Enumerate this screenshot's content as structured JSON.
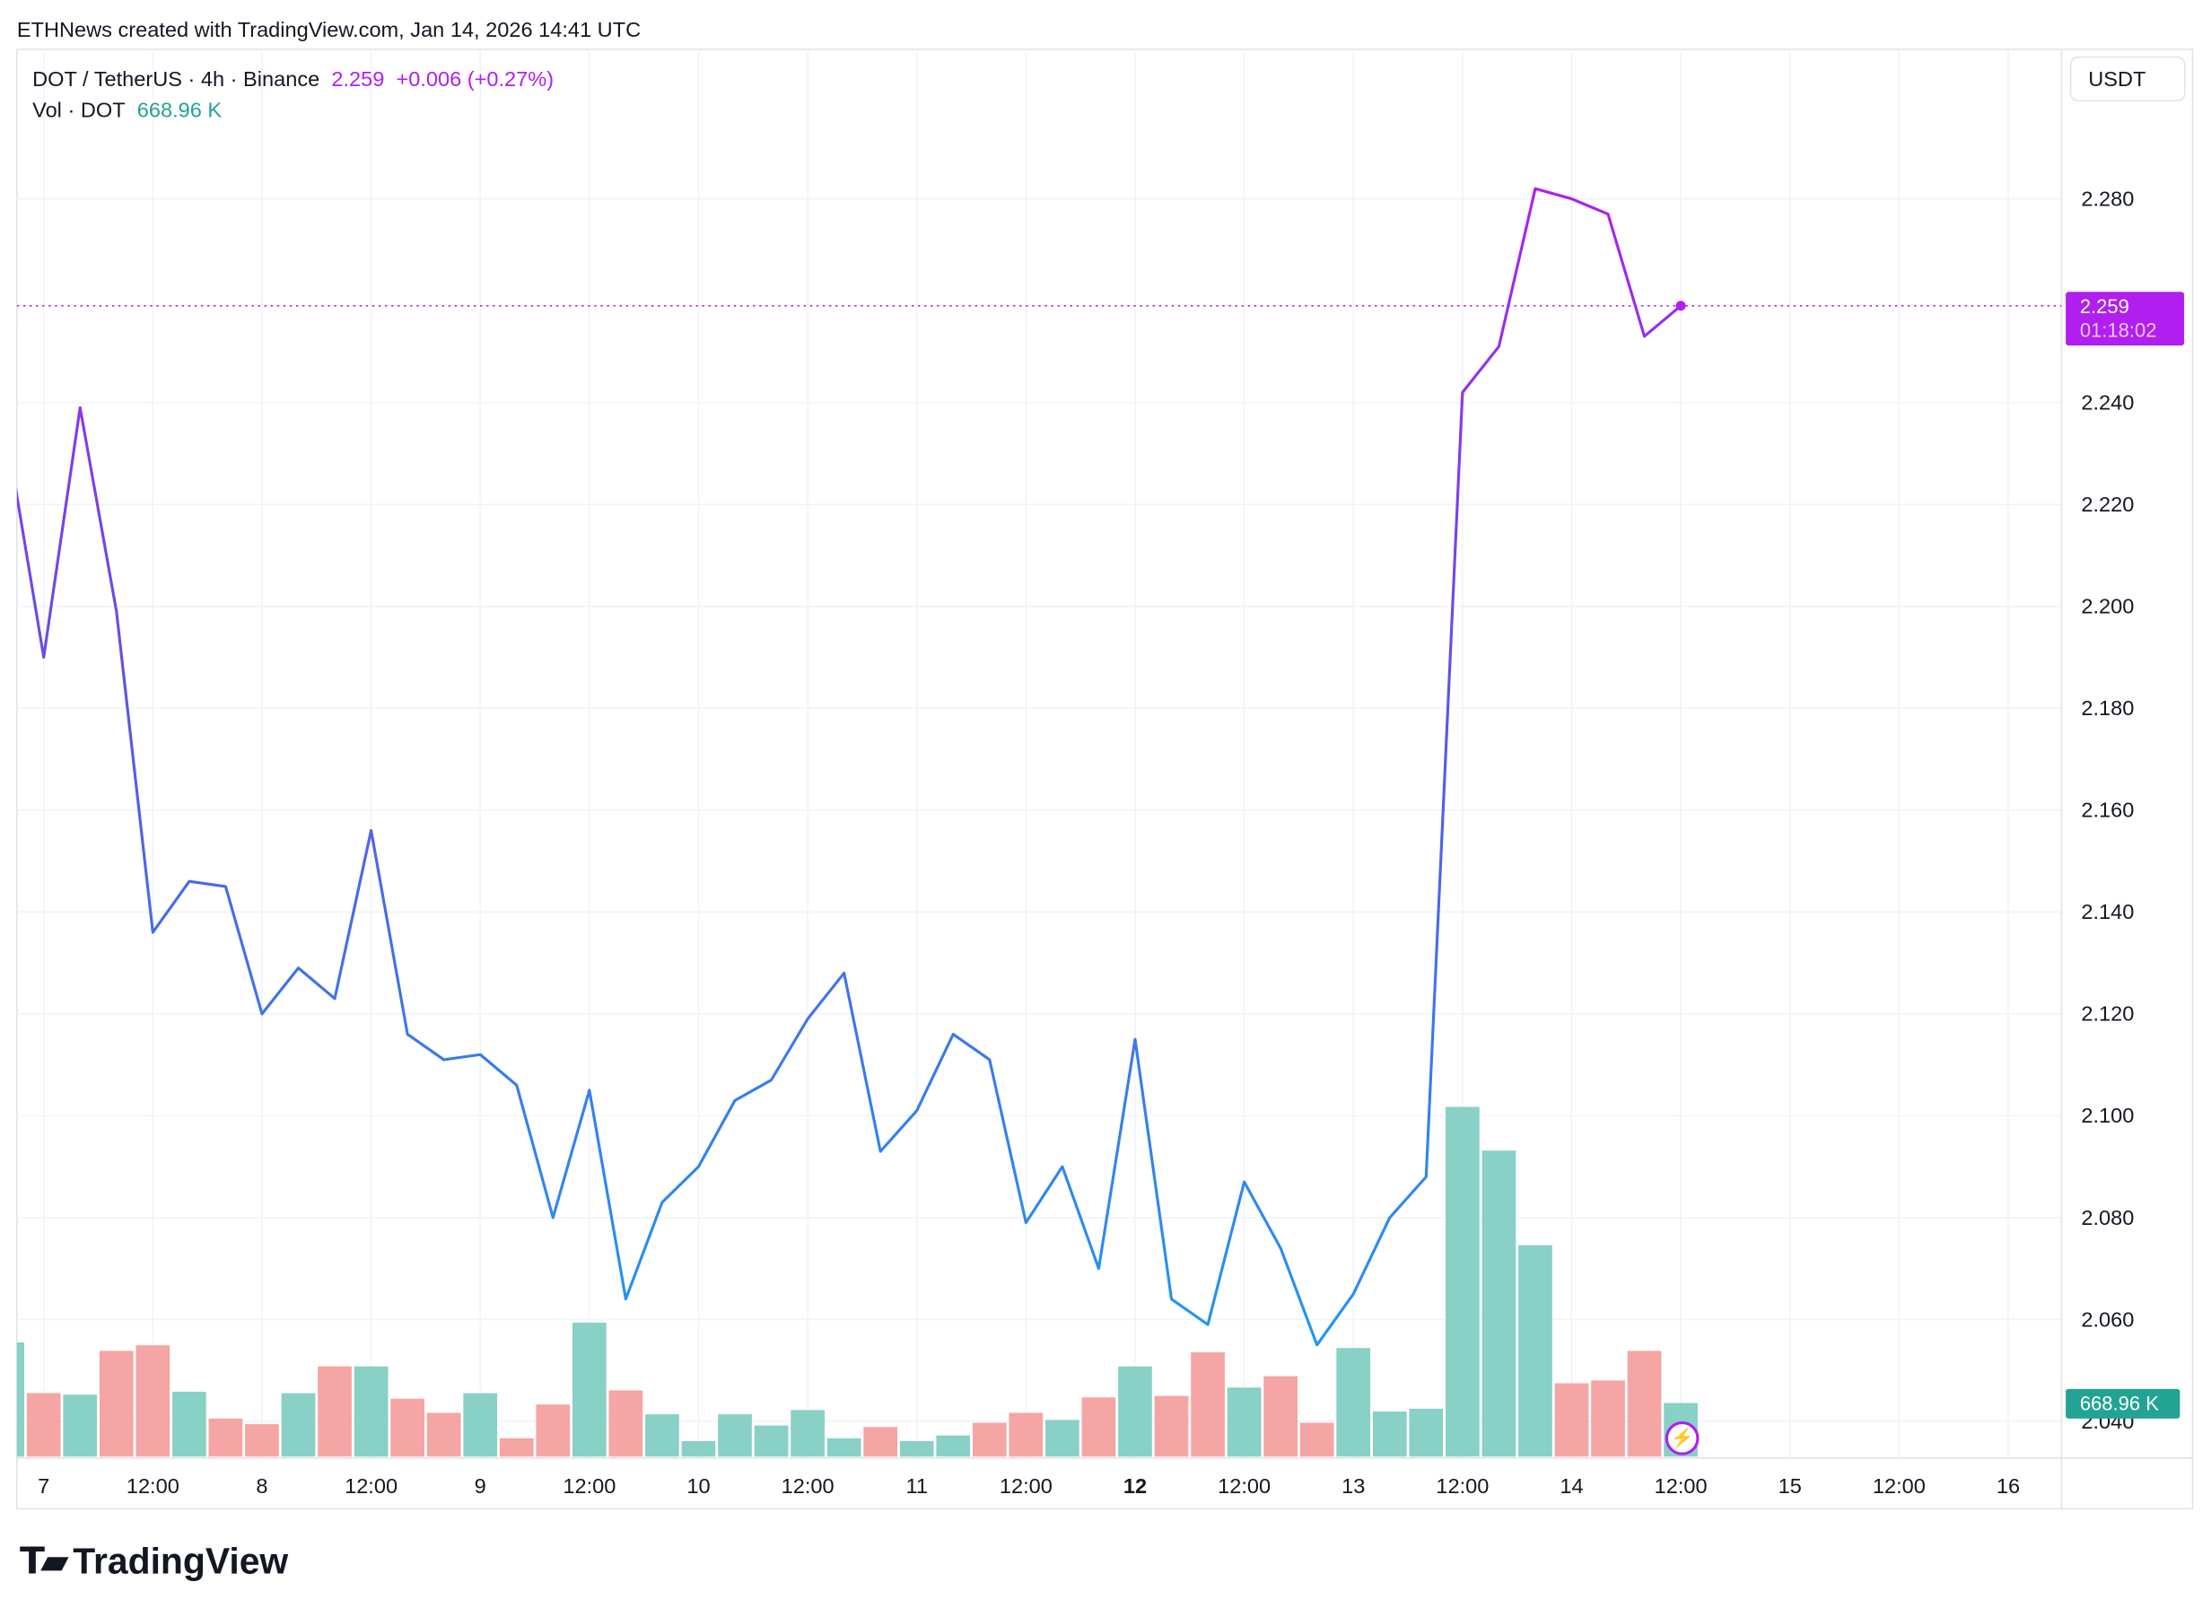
{
  "header": "ETHNews created with TradingView.com, Jan 14, 2026 14:41 UTC",
  "legend": {
    "symbol": "DOT / TetherUS · 4h · Binance",
    "price": "2.259",
    "change": "+0.006 (+0.27%)",
    "vol_label": "Vol · DOT",
    "vol_value": "668.96 K"
  },
  "currency_button": "USDT",
  "price_tag": {
    "price": "2.259",
    "countdown": "01:18:02"
  },
  "volume_tag": "668.96 K",
  "brand": "TradingView",
  "colors": {
    "up": "#89d0c6",
    "down": "#f5a5a3",
    "purple": "#b01ef0",
    "blue": "#2196f3",
    "teal": "#22a394"
  },
  "chart_data": {
    "type": "line",
    "title": "DOT / TetherUS · 4h · Binance",
    "ylabel": "USDT",
    "ylim": [
      2.035,
      2.305
    ],
    "y_ticks": [
      "2.280",
      "2.240",
      "2.220",
      "2.200",
      "2.180",
      "2.160",
      "2.140",
      "2.120",
      "2.100",
      "2.080",
      "2.060",
      "2.040"
    ],
    "x_ticks": [
      "7",
      "12:00",
      "8",
      "12:00",
      "9",
      "12:00",
      "10",
      "12:00",
      "11",
      "12:00",
      "12",
      "12:00",
      "13",
      "12:00",
      "14",
      "12:00",
      "15",
      "12:00",
      "16"
    ],
    "grid": true,
    "price": [
      2.233,
      2.19,
      2.239,
      2.199,
      2.136,
      2.146,
      2.145,
      2.12,
      2.129,
      2.123,
      2.156,
      2.116,
      2.111,
      2.112,
      2.106,
      2.08,
      2.105,
      2.064,
      2.083,
      2.09,
      2.103,
      2.107,
      2.119,
      2.128,
      2.093,
      2.101,
      2.116,
      2.111,
      2.079,
      2.09,
      2.07,
      2.115,
      2.064,
      2.059,
      2.087,
      2.074,
      2.055,
      2.065,
      2.08,
      2.088,
      2.242,
      2.251,
      2.282,
      2.28,
      2.277,
      2.253,
      2.259
    ],
    "volume_k": [
      1426,
      792,
      774,
      1320,
      1390,
      810,
      475,
      405,
      792,
      1126,
      1126,
      722,
      546,
      792,
      229,
      651,
      1672,
      827,
      528,
      194,
      528,
      387,
      581,
      229,
      370,
      194,
      264,
      422,
      546,
      458,
      739,
      1126,
      757,
      1302,
      862,
      1003,
      422,
      1355,
      563,
      598,
      4365,
      3819,
      2640,
      915,
      950,
      1320,
      669
    ],
    "volume_up": [
      1,
      0,
      1,
      0,
      0,
      1,
      0,
      0,
      1,
      0,
      1,
      0,
      0,
      1,
      0,
      0,
      1,
      0,
      1,
      1,
      1,
      1,
      1,
      1,
      0,
      1,
      1,
      0,
      0,
      1,
      0,
      1,
      0,
      0,
      1,
      0,
      0,
      1,
      1,
      1,
      1,
      1,
      1,
      0,
      0,
      0,
      1
    ],
    "last_price": 2.259
  }
}
